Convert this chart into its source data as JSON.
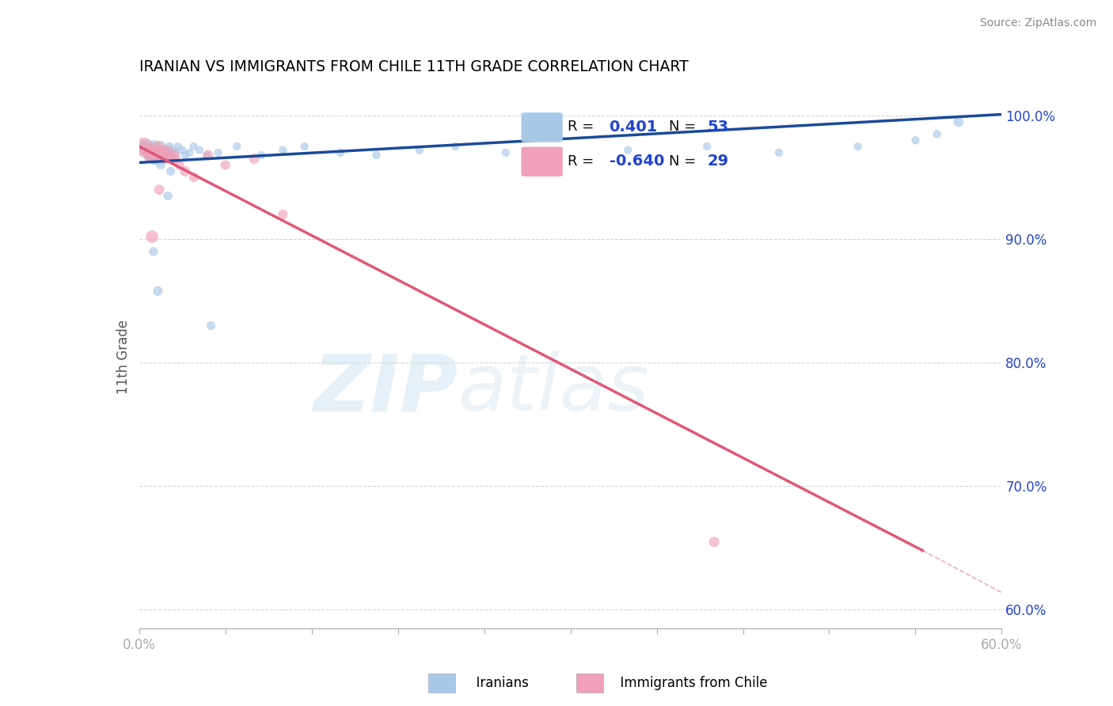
{
  "title": "IRANIAN VS IMMIGRANTS FROM CHILE 11TH GRADE CORRELATION CHART",
  "source": "Source: ZipAtlas.com",
  "ylabel": "11th Grade",
  "xlim": [
    0.0,
    0.6
  ],
  "ylim": [
    0.585,
    1.025
  ],
  "xticks": [
    0.0,
    0.06,
    0.12,
    0.18,
    0.24,
    0.3,
    0.36,
    0.42,
    0.48,
    0.54,
    0.6
  ],
  "yticks_right": [
    0.6,
    0.7,
    0.8,
    0.9,
    1.0
  ],
  "ytick_labels_right": [
    "60.0%",
    "70.0%",
    "80.0%",
    "90.0%",
    "100.0%"
  ],
  "R_iranian": "0.401",
  "N_iranian": "53",
  "R_chile": "-0.640",
  "N_chile": "29",
  "iranians_color": "#a8c8e8",
  "chile_color": "#f0a0b8",
  "trendline_iranian_color": "#1a4a9a",
  "trendline_chile_color": "#e05878",
  "watermark_zip": "ZIP",
  "watermark_atlas": "atlas",
  "background_color": "#ffffff",
  "grid_color": "#cccccc",
  "title_color": "#000000",
  "source_color": "#888888",
  "axis_label_color": "#555555",
  "legend_r_color": "#2244cc",
  "tick_color": "#2244cc",
  "iran_trend_x0": 0.0,
  "iran_trend_y0": 0.962,
  "iran_trend_x1": 0.6,
  "iran_trend_y1": 1.001,
  "chile_trend_x0": 0.0,
  "chile_trend_y0": 0.975,
  "chile_trend_solid_x1": 0.545,
  "chile_trend_solid_y1": 0.648,
  "chile_trend_dash_x1": 0.6,
  "chile_trend_dash_y1": 0.614,
  "iranians_x": [
    0.003,
    0.005,
    0.007,
    0.008,
    0.009,
    0.01,
    0.011,
    0.012,
    0.013,
    0.014,
    0.015,
    0.016,
    0.017,
    0.018,
    0.019,
    0.02,
    0.021,
    0.022,
    0.023,
    0.024,
    0.025,
    0.027,
    0.03,
    0.032,
    0.035,
    0.038,
    0.042,
    0.047,
    0.055,
    0.068,
    0.085,
    0.1,
    0.115,
    0.14,
    0.165,
    0.195,
    0.22,
    0.255,
    0.29,
    0.34,
    0.395,
    0.445,
    0.5,
    0.54,
    0.555,
    0.57,
    0.01,
    0.015,
    0.02,
    0.013,
    0.008,
    0.022,
    0.05
  ],
  "iranians_y": [
    0.973,
    0.975,
    0.97,
    0.968,
    0.972,
    0.975,
    0.965,
    0.97,
    0.972,
    0.968,
    0.975,
    0.97,
    0.968,
    0.972,
    0.965,
    0.97,
    0.975,
    0.968,
    0.972,
    0.965,
    0.97,
    0.975,
    0.972,
    0.968,
    0.97,
    0.975,
    0.972,
    0.968,
    0.97,
    0.975,
    0.968,
    0.972,
    0.975,
    0.97,
    0.968,
    0.972,
    0.975,
    0.97,
    0.968,
    0.972,
    0.975,
    0.97,
    0.975,
    0.98,
    0.985,
    0.995,
    0.89,
    0.96,
    0.935,
    0.858,
    0.965,
    0.955,
    0.83
  ],
  "iranians_size": [
    200,
    180,
    160,
    150,
    140,
    130,
    120,
    110,
    100,
    90,
    85,
    80,
    75,
    70,
    65,
    60,
    55,
    50,
    50,
    50,
    50,
    50,
    50,
    50,
    50,
    50,
    50,
    50,
    50,
    50,
    50,
    50,
    50,
    50,
    50,
    50,
    50,
    50,
    50,
    50,
    50,
    50,
    50,
    50,
    50,
    80,
    60,
    60,
    60,
    70,
    60,
    60,
    60
  ],
  "chile_x": [
    0.003,
    0.005,
    0.007,
    0.009,
    0.01,
    0.011,
    0.012,
    0.013,
    0.014,
    0.015,
    0.016,
    0.017,
    0.018,
    0.019,
    0.02,
    0.022,
    0.025,
    0.028,
    0.032,
    0.038,
    0.048,
    0.06,
    0.08,
    0.1,
    0.008,
    0.014,
    0.009,
    0.4,
    0.025
  ],
  "chile_y": [
    0.975,
    0.972,
    0.968,
    0.972,
    0.968,
    0.965,
    0.972,
    0.975,
    0.968,
    0.97,
    0.965,
    0.972,
    0.968,
    0.965,
    0.972,
    0.968,
    0.965,
    0.96,
    0.955,
    0.95,
    0.968,
    0.96,
    0.965,
    0.92,
    0.97,
    0.94,
    0.902,
    0.655,
    0.968
  ],
  "chile_size": [
    250,
    180,
    120,
    100,
    90,
    80,
    70,
    100,
    80,
    90,
    80,
    70,
    80,
    70,
    80,
    70,
    80,
    70,
    80,
    70,
    80,
    70,
    80,
    70,
    120,
    80,
    120,
    80,
    70
  ]
}
